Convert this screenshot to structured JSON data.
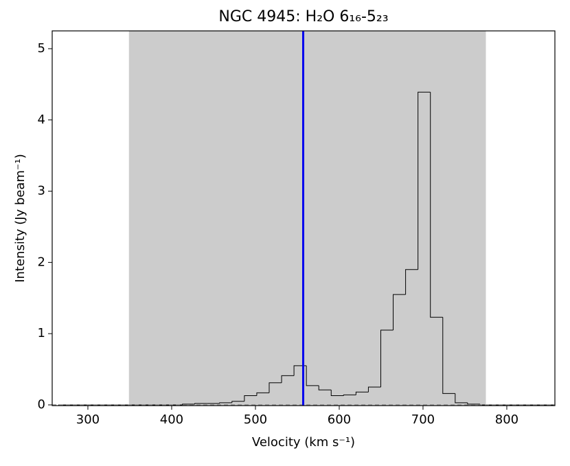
{
  "chart_data": {
    "type": "histogram",
    "title": "NGC 4945: H₂O 6₁₆-5₂₃",
    "xlabel": "Velocity (km s⁻¹)",
    "ylabel": "Intensity (Jy beam⁻¹)",
    "bins": [
      264.8,
      279.6,
      294.4,
      309.2,
      324,
      338.8,
      353.6,
      368.4,
      383.2,
      398,
      412.8,
      427.6,
      442.4,
      457.2,
      472,
      486.8,
      501.6,
      516.4,
      531.2,
      546,
      560.8,
      575.6,
      590.4,
      605.2,
      620,
      634.8,
      649.6,
      664.4,
      679.2,
      694,
      708.8,
      723.6,
      738.4,
      753.2,
      768,
      782.8,
      797.6,
      812.4,
      827.2,
      842,
      856.8
    ],
    "values": [
      0,
      0,
      0,
      0,
      0,
      0,
      0,
      0,
      0,
      0,
      0.01,
      0.02,
      0.02,
      0.03,
      0.05,
      0.13,
      0.17,
      0.31,
      0.41,
      0.55,
      0.27,
      0.21,
      0.13,
      0.14,
      0.18,
      0.25,
      1.05,
      1.55,
      1.9,
      4.39,
      1.23,
      0.16,
      0.03,
      0.01,
      0,
      0,
      0,
      0,
      0,
      0
    ],
    "color": "#000000",
    "span": {
      "range": [
        349,
        775
      ],
      "color": "#cccccc"
    },
    "vline": {
      "value": 557,
      "color": "#0000ee"
    },
    "hline": {
      "value": 0,
      "color": "#888888"
    },
    "xlim": [
      257.4,
      857.4
    ],
    "xticks": [
      300,
      400,
      500,
      600,
      700,
      800
    ],
    "ylim": [
      -0.01,
      5.25
    ],
    "yticks": [
      0,
      1,
      2,
      3,
      4,
      5
    ]
  }
}
